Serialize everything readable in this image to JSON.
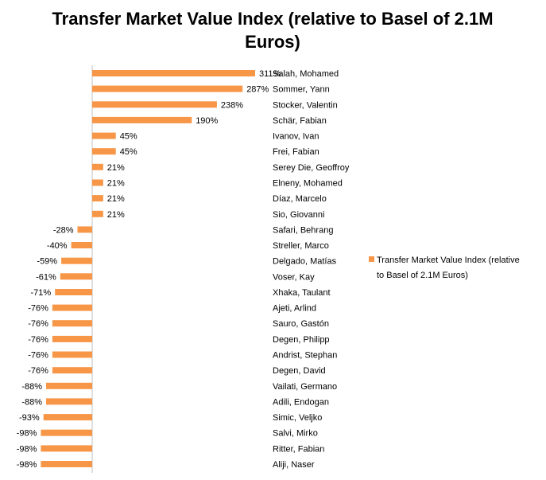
{
  "chart_data": {
    "type": "bar",
    "orientation": "horizontal",
    "title": "Transfer Market Value Index (relative to Basel of 2.1M Euros)",
    "title_line1": "Transfer Market Value Index (relative to Basel of 2.1M",
    "title_line2": "Euros)",
    "legend": {
      "label_line1": "Transfer Market Value Index (relative",
      "label_line2": "to Basel of 2.1M Euros)",
      "position": "right"
    },
    "series": [
      {
        "name": "Transfer Market Value Index (relative to Basel of 2.1M Euros)",
        "color": "#f79646",
        "points": [
          {
            "category": "Salah, Mohamed",
            "value": 311,
            "label": "311%"
          },
          {
            "category": "Sommer, Yann",
            "value": 287,
            "label": "287%"
          },
          {
            "category": "Stocker, Valentin",
            "value": 238,
            "label": "238%"
          },
          {
            "category": "Schär, Fabian",
            "value": 190,
            "label": "190%"
          },
          {
            "category": "Ivanov, Ivan",
            "value": 45,
            "label": "45%"
          },
          {
            "category": "Frei, Fabian",
            "value": 45,
            "label": "45%"
          },
          {
            "category": "Serey Die, Geoffroy",
            "value": 21,
            "label": "21%"
          },
          {
            "category": "Elneny, Mohamed",
            "value": 21,
            "label": "21%"
          },
          {
            "category": "Díaz, Marcelo",
            "value": 21,
            "label": "21%"
          },
          {
            "category": "Sio, Giovanni",
            "value": 21,
            "label": "21%"
          },
          {
            "category": "Safari, Behrang",
            "value": -28,
            "label": "-28%"
          },
          {
            "category": "Streller, Marco",
            "value": -40,
            "label": "-40%"
          },
          {
            "category": "Delgado, Matías",
            "value": -59,
            "label": "-59%"
          },
          {
            "category": "Voser, Kay",
            "value": -61,
            "label": "-61%"
          },
          {
            "category": "Xhaka, Taulant",
            "value": -71,
            "label": "-71%"
          },
          {
            "category": "Ajeti, Arlind",
            "value": -76,
            "label": "-76%"
          },
          {
            "category": "Sauro, Gastón",
            "value": -76,
            "label": "-76%"
          },
          {
            "category": "Degen, Philipp",
            "value": -76,
            "label": "-76%"
          },
          {
            "category": "Andrist, Stephan",
            "value": -76,
            "label": "-76%"
          },
          {
            "category": "Degen, David",
            "value": -76,
            "label": "-76%"
          },
          {
            "category": "Vailati, Germano",
            "value": -88,
            "label": "-88%"
          },
          {
            "category": "Adili, Endogan",
            "value": -88,
            "label": "-88%"
          },
          {
            "category": "Simic, Veljko",
            "value": -93,
            "label": "-93%"
          },
          {
            "category": "Salvi, Mirko",
            "value": -98,
            "label": "-98%"
          },
          {
            "category": "Ritter, Fabian",
            "value": -98,
            "label": "-98%"
          },
          {
            "category": "Aliji, Naser",
            "value": -98,
            "label": "-98%"
          }
        ]
      }
    ],
    "grid": false,
    "category_labels_side": "right"
  }
}
